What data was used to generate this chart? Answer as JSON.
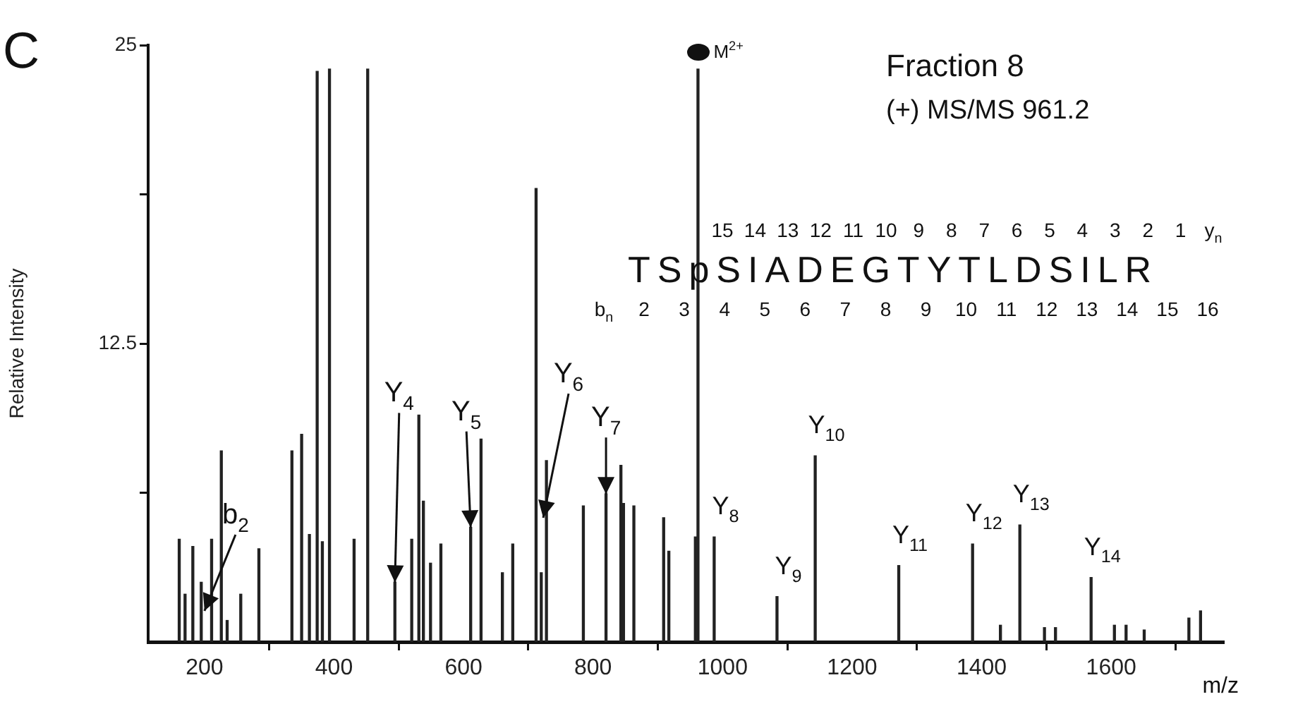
{
  "chart_data": {
    "type": "bar",
    "title": "Fraction 8",
    "subtitle": "(+) MS/MS 961.2",
    "xlabel": "m/z",
    "ylabel": "Relative Intensity",
    "color": "#222222",
    "x": [
      161,
      170,
      182,
      195,
      211,
      226,
      235,
      256,
      284,
      335,
      350,
      362,
      374,
      382,
      393,
      431,
      452,
      494,
      520,
      531,
      538,
      549,
      565,
      611,
      627,
      660,
      676,
      712,
      720,
      728,
      785,
      820,
      843,
      847,
      863,
      909,
      917,
      958,
      962,
      987,
      1084,
      1143,
      1272,
      1386,
      1429,
      1459,
      1497,
      1514,
      1569,
      1605,
      1623,
      1651,
      1720,
      1738
    ],
    "values": [
      4.3,
      2.0,
      4.0,
      2.5,
      4.3,
      8.0,
      0.9,
      2.0,
      3.9,
      8.0,
      8.7,
      4.5,
      23.9,
      4.2,
      24.0,
      4.3,
      24.0,
      2.5,
      4.3,
      9.5,
      5.9,
      3.3,
      4.1,
      4.8,
      8.5,
      2.9,
      4.1,
      19.0,
      2.9,
      7.6,
      5.7,
      6.2,
      7.4,
      5.8,
      5.7,
      5.2,
      3.8,
      4.4,
      24.0,
      4.4,
      1.9,
      7.8,
      3.2,
      4.1,
      0.7,
      4.9,
      0.6,
      0.6,
      2.7,
      0.7,
      0.7,
      0.5,
      1.0,
      1.3
    ],
    "xlim": [
      113,
      1773
    ],
    "xticks": [
      200,
      400,
      600,
      800,
      1000,
      1200,
      1400,
      1600
    ],
    "ylim": [
      0,
      25
    ],
    "yticks": [
      {
        "value": 6.25,
        "label": null
      },
      12.5,
      {
        "value": 18.75,
        "label": null
      },
      25
    ],
    "annotations": [
      "C",
      {
        "text": "M$^{2+}$",
        "x": 962,
        "y": 24.0
      },
      "15 14 13 12 11 10 9 8 7 6 5 4 3 2 1 y$_{n}$",
      "TSpSIADEGTYTLDSILR",
      "b$_{n}$ 2 3 4 5 6 7 8 9 10 11 12 13 14 15 16",
      {
        "text": "b$_{2}$",
        "x": 200,
        "y": 1.3
      },
      {
        "text": "Y$_{4}$",
        "x": 494,
        "y": 2.5
      },
      {
        "text": "Y$_{5}$",
        "x": 611,
        "y": 4.8
      },
      {
        "text": "Y$_{6}$",
        "x": 723,
        "y": 5.2
      },
      {
        "text": "Y$_{7}$",
        "x": 820,
        "y": 6.2
      },
      {
        "text": "Y$_{8}$",
        "x": 987,
        "y": 4.4
      },
      {
        "text": "Y$_{9}$",
        "x": 1084,
        "y": 1.9
      },
      {
        "text": "Y$_{10}$",
        "x": 1143,
        "y": 7.8
      },
      {
        "text": "Y$_{11}$",
        "x": 1272,
        "y": 3.2
      },
      {
        "text": "Y$_{12}$",
        "x": 1386,
        "y": 4.1
      },
      {
        "text": "Y$_{13}$",
        "x": 1459,
        "y": 4.9
      },
      {
        "text": "Y$_{14}$",
        "x": 1569,
        "y": 2.7
      }
    ]
  }
}
